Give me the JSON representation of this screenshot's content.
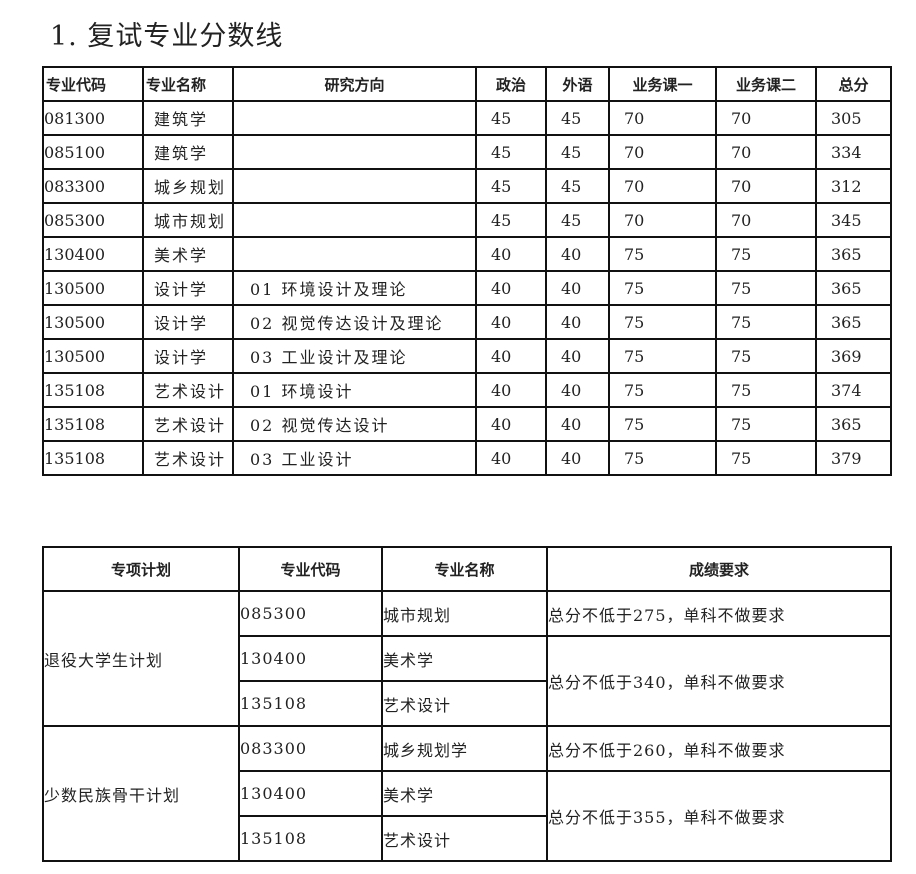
{
  "title": "1. 复试专业分数线",
  "scores_table": {
    "headers": [
      "专业代码",
      "专业名称",
      "研究方向",
      "政治",
      "外语",
      "业务课一",
      "业务课二",
      "总分"
    ],
    "rows": [
      [
        "081300",
        "建筑学",
        "",
        "45",
        "45",
        "70",
        "70",
        "305"
      ],
      [
        "085100",
        "建筑学",
        "",
        "45",
        "45",
        "70",
        "70",
        "334"
      ],
      [
        "083300",
        "城乡规划",
        "",
        "45",
        "45",
        "70",
        "70",
        "312"
      ],
      [
        "085300",
        "城市规划",
        "",
        "45",
        "45",
        "70",
        "70",
        "345"
      ],
      [
        "130400",
        "美术学",
        "",
        "40",
        "40",
        "75",
        "75",
        "365"
      ],
      [
        "130500",
        "设计学",
        "01 环境设计及理论",
        "40",
        "40",
        "75",
        "75",
        "365"
      ],
      [
        "130500",
        "设计学",
        "02 视觉传达设计及理论",
        "40",
        "40",
        "75",
        "75",
        "365"
      ],
      [
        "130500",
        "设计学",
        "03 工业设计及理论",
        "40",
        "40",
        "75",
        "75",
        "369"
      ],
      [
        "135108",
        "艺术设计",
        "01 环境设计",
        "40",
        "40",
        "75",
        "75",
        "374"
      ],
      [
        "135108",
        "艺术设计",
        "02 视觉传达设计",
        "40",
        "40",
        "75",
        "75",
        "365"
      ],
      [
        "135108",
        "艺术设计",
        "03 工业设计",
        "40",
        "40",
        "75",
        "75",
        "379"
      ]
    ]
  },
  "special_table": {
    "headers": [
      "专项计划",
      "专业代码",
      "专业名称",
      "成绩要求"
    ],
    "groups": [
      {
        "plan": "退役大学生计划",
        "rows": [
          {
            "code": "085300",
            "name": "城市规划",
            "req": "总分不低于275，单科不做要求",
            "span": 1
          },
          {
            "code": "130400",
            "name": "美术学",
            "req": "总分不低于340，单科不做要求",
            "span": 2
          },
          {
            "code": "135108",
            "name": "艺术设计"
          }
        ]
      },
      {
        "plan": "少数民族骨干计划",
        "rows": [
          {
            "code": "083300",
            "name": "城乡规划学",
            "req": "总分不低于260，单科不做要求",
            "span": 1
          },
          {
            "code": "130400",
            "name": "美术学",
            "req": "总分不低于355，单科不做要求",
            "span": 2
          },
          {
            "code": "135108",
            "name": "艺术设计"
          }
        ]
      }
    ]
  }
}
